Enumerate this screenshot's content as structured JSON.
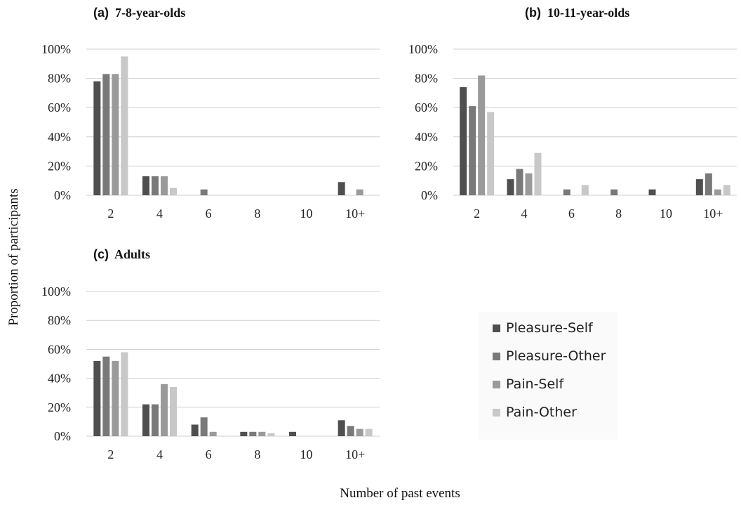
{
  "figure": {
    "ylabel": "Proportion of participants",
    "xlabel": "Number of past events"
  },
  "legend": [
    {
      "name": "Pleasure-Self",
      "color": "#4f4f4f"
    },
    {
      "name": "Pleasure-Other",
      "color": "#797979"
    },
    {
      "name": "Pain-Self",
      "color": "#9a9a9a"
    },
    {
      "name": "Pain-Other",
      "color": "#c8c8c8"
    }
  ],
  "chart_data": [
    {
      "type": "bar",
      "tag": "(a)",
      "title": "7-8-year-olds",
      "categories": [
        "2",
        "4",
        "6",
        "8",
        "10",
        "10+"
      ],
      "yticks": [
        "0%",
        "20%",
        "40%",
        "60%",
        "80%",
        "100%"
      ],
      "ylim": [
        0,
        100
      ],
      "series": [
        {
          "name": "Pleasure-Self",
          "values": [
            78,
            13,
            0,
            0,
            0,
            9
          ]
        },
        {
          "name": "Pleasure-Other",
          "values": [
            83,
            13,
            4,
            0,
            0,
            0
          ]
        },
        {
          "name": "Pain-Self",
          "values": [
            83,
            13,
            0,
            0,
            0,
            4
          ]
        },
        {
          "name": "Pain-Other",
          "values": [
            95,
            5,
            0,
            0,
            0,
            0
          ]
        }
      ]
    },
    {
      "type": "bar",
      "tag": "(b)",
      "title": "10-11-year-olds",
      "categories": [
        "2",
        "4",
        "6",
        "8",
        "10",
        "10+"
      ],
      "yticks": [
        "0%",
        "20%",
        "40%",
        "60%",
        "80%",
        "100%"
      ],
      "ylim": [
        0,
        100
      ],
      "series": [
        {
          "name": "Pleasure-Self",
          "values": [
            74,
            11,
            0,
            0,
            4,
            11
          ]
        },
        {
          "name": "Pleasure-Other",
          "values": [
            61,
            18,
            4,
            4,
            0,
            15
          ]
        },
        {
          "name": "Pain-Self",
          "values": [
            82,
            15,
            0,
            0,
            0,
            4
          ]
        },
        {
          "name": "Pain-Other",
          "values": [
            57,
            29,
            7,
            0,
            0,
            7
          ]
        }
      ]
    },
    {
      "type": "bar",
      "tag": "(c)",
      "title": "Adults",
      "categories": [
        "2",
        "4",
        "6",
        "8",
        "10",
        "10+"
      ],
      "yticks": [
        "0%",
        "20%",
        "40%",
        "60%",
        "80%",
        "100%"
      ],
      "ylim": [
        0,
        100
      ],
      "series": [
        {
          "name": "Pleasure-Self",
          "values": [
            52,
            22,
            8,
            3,
            3,
            11
          ]
        },
        {
          "name": "Pleasure-Other",
          "values": [
            55,
            22,
            13,
            3,
            0,
            7
          ]
        },
        {
          "name": "Pain-Self",
          "values": [
            52,
            36,
            3,
            3,
            0,
            5
          ]
        },
        {
          "name": "Pain-Other",
          "values": [
            58,
            34,
            0,
            2,
            0,
            5
          ]
        }
      ]
    }
  ]
}
